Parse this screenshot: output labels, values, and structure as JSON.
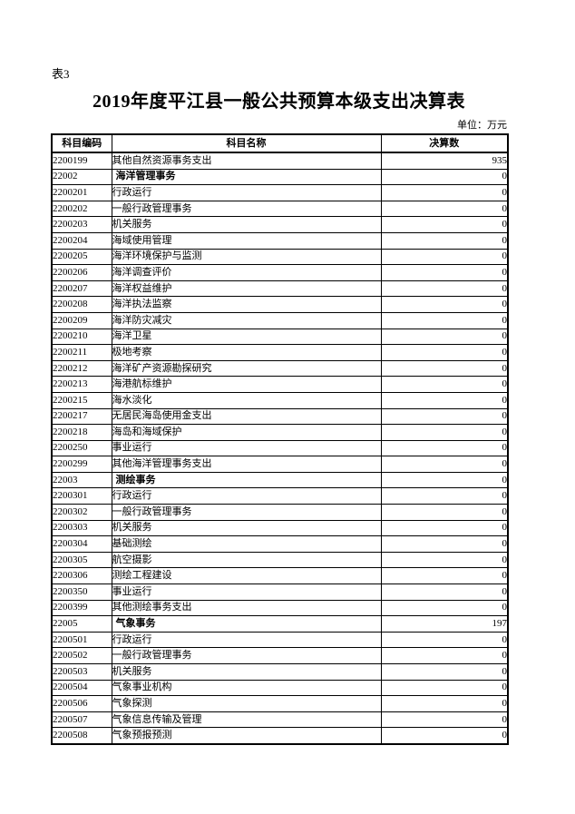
{
  "page": {
    "table_label": "表3",
    "title": "2019年度平江县一般公共预算本级支出决算表",
    "unit_note": "单位：万元"
  },
  "colors": {
    "background": "#ffffff",
    "text": "#000000",
    "border": "#000000"
  },
  "table": {
    "columns": [
      "科目编码",
      "科目名称",
      "决算数"
    ],
    "rows": [
      {
        "code": "2200199",
        "name": "其他自然资源事务支出",
        "value": "935",
        "category": false
      },
      {
        "code": "22002",
        "name": "海洋管理事务",
        "value": "0",
        "category": true
      },
      {
        "code": "2200201",
        "name": "行政运行",
        "value": "0",
        "category": false
      },
      {
        "code": "2200202",
        "name": "一般行政管理事务",
        "value": "0",
        "category": false
      },
      {
        "code": "2200203",
        "name": "机关服务",
        "value": "0",
        "category": false
      },
      {
        "code": "2200204",
        "name": "海域使用管理",
        "value": "0",
        "category": false
      },
      {
        "code": "2200205",
        "name": "海洋环境保护与监测",
        "value": "0",
        "category": false
      },
      {
        "code": "2200206",
        "name": "海洋调查评价",
        "value": "0",
        "category": false
      },
      {
        "code": "2200207",
        "name": "海洋权益维护",
        "value": "0",
        "category": false
      },
      {
        "code": "2200208",
        "name": "海洋执法监察",
        "value": "0",
        "category": false
      },
      {
        "code": "2200209",
        "name": "海洋防灾减灾",
        "value": "0",
        "category": false
      },
      {
        "code": "2200210",
        "name": "海洋卫星",
        "value": "0",
        "category": false
      },
      {
        "code": "2200211",
        "name": "极地考察",
        "value": "0",
        "category": false
      },
      {
        "code": "2200212",
        "name": "海洋矿产资源勘探研究",
        "value": "0",
        "category": false
      },
      {
        "code": "2200213",
        "name": "海港航标维护",
        "value": "0",
        "category": false
      },
      {
        "code": "2200215",
        "name": "海水淡化",
        "value": "0",
        "category": false
      },
      {
        "code": "2200217",
        "name": "无居民海岛使用金支出",
        "value": "0",
        "category": false
      },
      {
        "code": "2200218",
        "name": "海岛和海域保护",
        "value": "0",
        "category": false
      },
      {
        "code": "2200250",
        "name": "事业运行",
        "value": "0",
        "category": false
      },
      {
        "code": "2200299",
        "name": "其他海洋管理事务支出",
        "value": "0",
        "category": false
      },
      {
        "code": "22003",
        "name": "测绘事务",
        "value": "0",
        "category": true
      },
      {
        "code": "2200301",
        "name": "行政运行",
        "value": "0",
        "category": false
      },
      {
        "code": "2200302",
        "name": "一般行政管理事务",
        "value": "0",
        "category": false
      },
      {
        "code": "2200303",
        "name": "机关服务",
        "value": "0",
        "category": false
      },
      {
        "code": "2200304",
        "name": "基础测绘",
        "value": "0",
        "category": false
      },
      {
        "code": "2200305",
        "name": "航空摄影",
        "value": "0",
        "category": false
      },
      {
        "code": "2200306",
        "name": "测绘工程建设",
        "value": "0",
        "category": false
      },
      {
        "code": "2200350",
        "name": "事业运行",
        "value": "0",
        "category": false
      },
      {
        "code": "2200399",
        "name": "其他测绘事务支出",
        "value": "0",
        "category": false
      },
      {
        "code": "22005",
        "name": "气象事务",
        "value": "197",
        "category": true
      },
      {
        "code": "2200501",
        "name": "行政运行",
        "value": "0",
        "category": false
      },
      {
        "code": "2200502",
        "name": "一般行政管理事务",
        "value": "0",
        "category": false
      },
      {
        "code": "2200503",
        "name": "机关服务",
        "value": "0",
        "category": false
      },
      {
        "code": "2200504",
        "name": "气象事业机构",
        "value": "0",
        "category": false
      },
      {
        "code": "2200506",
        "name": "气象探测",
        "value": "0",
        "category": false
      },
      {
        "code": "2200507",
        "name": "气象信息传输及管理",
        "value": "0",
        "category": false
      },
      {
        "code": "2200508",
        "name": "气象预报预测",
        "value": "0",
        "category": false
      }
    ]
  }
}
